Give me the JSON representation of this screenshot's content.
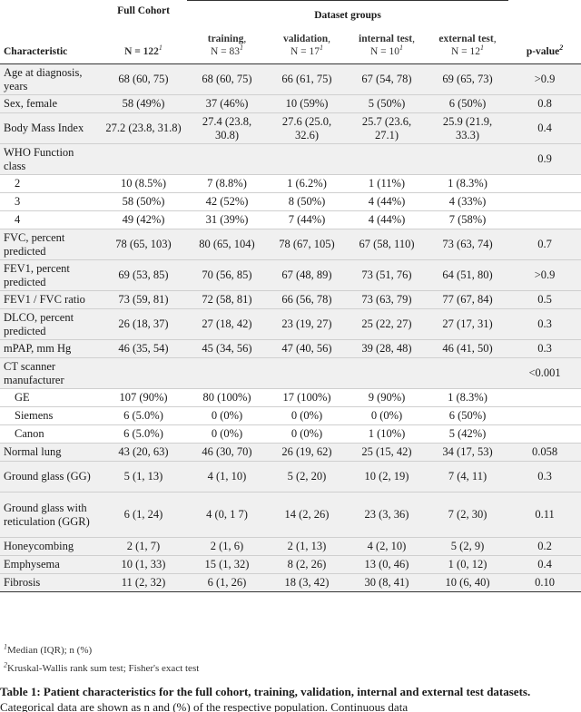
{
  "header": {
    "full_cohort": "Full Cohort",
    "dataset_groups": "Dataset groups",
    "characteristic": "Characteristic",
    "full_n": "N = 122",
    "full_n_sup": "1",
    "columns": [
      {
        "label": "training",
        "n": "N = 83",
        "sup": "1"
      },
      {
        "label": "validation",
        "n": "N = 17",
        "sup": "1"
      },
      {
        "label": "internal test",
        "n": "N = 10",
        "sup": "1"
      },
      {
        "label": "external test",
        "n": "N = 12",
        "sup": "1"
      }
    ],
    "pvalue": "p-value",
    "pvalue_sup": "2"
  },
  "rows": [
    {
      "c": "Age at diagnosis, years",
      "v": [
        "68 (60, 75)",
        "68 (60, 75)",
        "66 (61, 75)",
        "67 (54, 78)",
        "69 (65, 73)"
      ],
      "p": ">0.9",
      "group": true
    },
    {
      "c": "Sex, female",
      "v": [
        "58 (49%)",
        "37 (46%)",
        "10 (59%)",
        "5 (50%)",
        "6 (50%)"
      ],
      "p": "0.8",
      "group": true
    },
    {
      "c": "Body Mass Index",
      "v": [
        "27.2 (23.8, 31.8)",
        "27.4 (23.8, 30.8)",
        "27.6 (25.0, 32.6)",
        "25.7 (23.6, 27.1)",
        "25.9 (21.9, 33.3)"
      ],
      "p": "0.4",
      "group": true
    },
    {
      "c": "WHO Function class",
      "v": [
        "",
        "",
        "",
        "",
        ""
      ],
      "p": "0.9",
      "group": true
    },
    {
      "c": "2",
      "v": [
        "10 (8.5%)",
        "7 (8.8%)",
        "1 (6.2%)",
        "1 (11%)",
        "1 (8.3%)"
      ],
      "p": "",
      "sub": true
    },
    {
      "c": "3",
      "v": [
        "58 (50%)",
        "42 (52%)",
        "8 (50%)",
        "4 (44%)",
        "4 (33%)"
      ],
      "p": "",
      "sub": true
    },
    {
      "c": "4",
      "v": [
        "49 (42%)",
        "31 (39%)",
        "7 (44%)",
        "4 (44%)",
        "7 (58%)"
      ],
      "p": "",
      "sub": true
    },
    {
      "c": "FVC, percent predicted",
      "v": [
        "78 (65, 103)",
        "80 (65, 104)",
        "78 (67, 105)",
        "67 (58, 110)",
        "73 (63, 74)"
      ],
      "p": "0.7",
      "group": true
    },
    {
      "c": "FEV1, percent predicted",
      "v": [
        "69 (53, 85)",
        "70 (56, 85)",
        "67 (48, 89)",
        "73 (51, 76)",
        "64 (51, 80)"
      ],
      "p": ">0.9",
      "group": true
    },
    {
      "c": "FEV1 / FVC ratio",
      "v": [
        "73 (59, 81)",
        "72 (58, 81)",
        "66 (56, 78)",
        "73 (63, 79)",
        "77 (67, 84)"
      ],
      "p": "0.5",
      "group": true
    },
    {
      "c": "DLCO, percent predicted",
      "v": [
        "26 (18, 37)",
        "27 (18, 42)",
        "23 (19, 27)",
        "25 (22, 27)",
        "27 (17, 31)"
      ],
      "p": "0.3",
      "group": true
    },
    {
      "c": "mPAP, mm Hg",
      "v": [
        "46 (35, 54)",
        "45 (34, 56)",
        "47 (40, 56)",
        "39 (28, 48)",
        "46 (41, 50)"
      ],
      "p": "0.3",
      "group": true
    },
    {
      "c": "CT scanner manufacturer",
      "v": [
        "",
        "",
        "",
        "",
        ""
      ],
      "p": "<0.001",
      "pbold": true,
      "group": true
    },
    {
      "c": "GE",
      "v": [
        "107 (90%)",
        "80 (100%)",
        "17 (100%)",
        "9 (90%)",
        "1 (8.3%)"
      ],
      "p": "",
      "sub": true
    },
    {
      "c": "Siemens",
      "v": [
        "6 (5.0%)",
        "0 (0%)",
        "0 (0%)",
        "0 (0%)",
        "6 (50%)"
      ],
      "p": "",
      "sub": true
    },
    {
      "c": "Canon",
      "v": [
        "6 (5.0%)",
        "0 (0%)",
        "0 (0%)",
        "1 (10%)",
        "5 (42%)"
      ],
      "p": "",
      "sub": true
    },
    {
      "c": "Normal lung",
      "v": [
        "43 (20, 63)",
        "46 (30, 70)",
        "26 (19, 62)",
        "25 (15, 42)",
        "34 (17, 53)"
      ],
      "p": "0.058",
      "group": true
    },
    {
      "c": "Ground glass (GG)",
      "v": [
        "5 (1, 13)",
        "4 (1, 10)",
        "5 (2, 20)",
        "10 (2, 19)",
        "7 (4, 11)"
      ],
      "p": "0.3",
      "group": true
    },
    {
      "c": "Ground glass with reticulation (GGR)",
      "v": [
        "6 (1, 24)",
        "4 (0, 1 7)",
        "14 (2, 26)",
        "23 (3, 36)",
        "7 (2, 30)"
      ],
      "p": "0.11",
      "group": true
    },
    {
      "c": "Honeycombing",
      "v": [
        "2 (1, 7)",
        "2 (1, 6)",
        "2 (1, 13)",
        "4 (2, 10)",
        "5 (2, 9)"
      ],
      "p": "0.2",
      "group": true
    },
    {
      "c": "Emphysema",
      "v": [
        "10 (1, 33)",
        "15 (1, 32)",
        "8 (2, 26)",
        "13 (0, 46)",
        "1 (0, 12)"
      ],
      "p": "0.4",
      "group": true
    },
    {
      "c": "Fibrosis",
      "v": [
        "11 (2, 32)",
        "6 (1, 26)",
        "18 (3, 42)",
        "30 (8, 41)",
        "10 (6, 40)"
      ],
      "p": "0.10",
      "group": true
    }
  ],
  "footnotes": [
    {
      "sup": "1",
      "text": "Median (IQR); n (%)"
    },
    {
      "sup": "2",
      "text": "Kruskal-Wallis rank sum test; Fisher's exact test"
    }
  ],
  "caption": {
    "bold": "Table 1: Patient characteristics for the full cohort, training, validation, internal and external test datasets.",
    "text": " Categorical data are shown as n and (%) of the respective population. Continuous data"
  }
}
